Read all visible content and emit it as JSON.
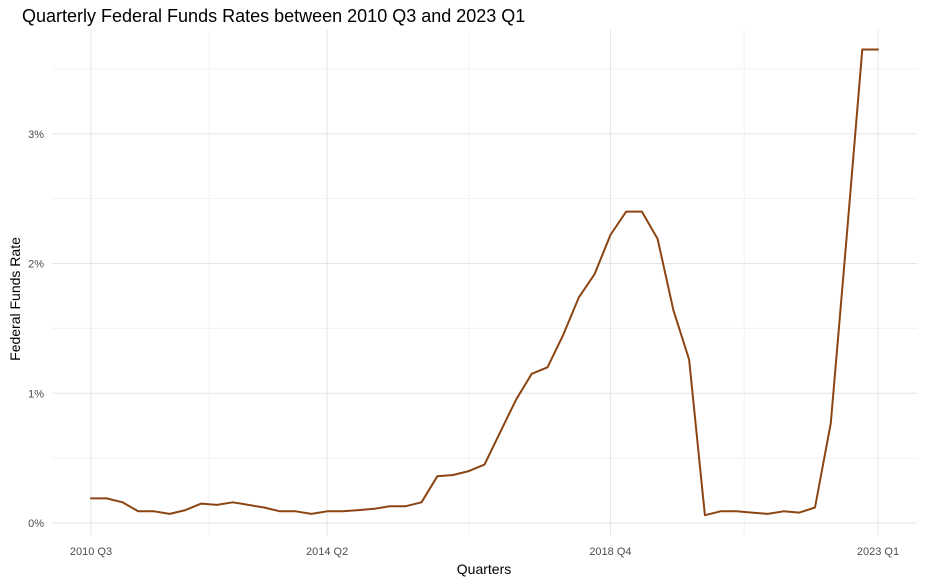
{
  "chart_data": {
    "type": "line",
    "title": "Quarterly Federal Funds Rates between 2010 Q3 and 2023 Q1",
    "xlabel": "Quarters",
    "ylabel": "Federal Funds Rate",
    "x_tick_labels": [
      "2010 Q3",
      "2014 Q2",
      "2018 Q4",
      "2023 Q1"
    ],
    "x_tick_indices": [
      0,
      15,
      33,
      50
    ],
    "y_ticks": [
      0,
      1,
      2,
      3
    ],
    "y_tick_labels": [
      "0%",
      "1%",
      "2%",
      "3%"
    ],
    "ylim": [
      -0.1,
      3.8
    ],
    "grid": true,
    "legend": "none",
    "line_color": "#8B4513",
    "categories": [
      "2010 Q3",
      "2010 Q4",
      "2011 Q1",
      "2011 Q2",
      "2011 Q3",
      "2011 Q4",
      "2012 Q1",
      "2012 Q2",
      "2012 Q3",
      "2012 Q4",
      "2013 Q1",
      "2013 Q2",
      "2013 Q3",
      "2013 Q4",
      "2014 Q1",
      "2014 Q2",
      "2014 Q3",
      "2014 Q4",
      "2015 Q1",
      "2015 Q2",
      "2015 Q3",
      "2015 Q4",
      "2016 Q1",
      "2016 Q2",
      "2016 Q3",
      "2016 Q4",
      "2017 Q1",
      "2017 Q2",
      "2017 Q3",
      "2017 Q4",
      "2018 Q1",
      "2018 Q2",
      "2018 Q3",
      "2018 Q4",
      "2019 Q1",
      "2019 Q2",
      "2019 Q3",
      "2019 Q4",
      "2020 Q1",
      "2020 Q2",
      "2020 Q3",
      "2020 Q4",
      "2021 Q1",
      "2021 Q2",
      "2021 Q3",
      "2021 Q4",
      "2022 Q1",
      "2022 Q2",
      "2022 Q3",
      "2022 Q4",
      "2023 Q1"
    ],
    "series": [
      {
        "values": [
          0.19,
          0.19,
          0.16,
          0.09,
          0.09,
          0.07,
          0.1,
          0.15,
          0.14,
          0.16,
          0.14,
          0.12,
          0.09,
          0.09,
          0.07,
          0.09,
          0.09,
          0.1,
          0.11,
          0.13,
          0.13,
          0.16,
          0.36,
          0.37,
          0.4,
          0.45,
          0.7,
          0.95,
          1.15,
          1.2,
          1.45,
          1.74,
          1.92,
          2.22,
          2.4,
          2.4,
          2.19,
          1.64,
          1.26,
          0.06,
          0.09,
          0.09,
          0.08,
          0.07,
          0.09,
          0.08,
          0.12,
          0.77,
          2.19,
          3.65,
          3.65
        ]
      }
    ]
  }
}
